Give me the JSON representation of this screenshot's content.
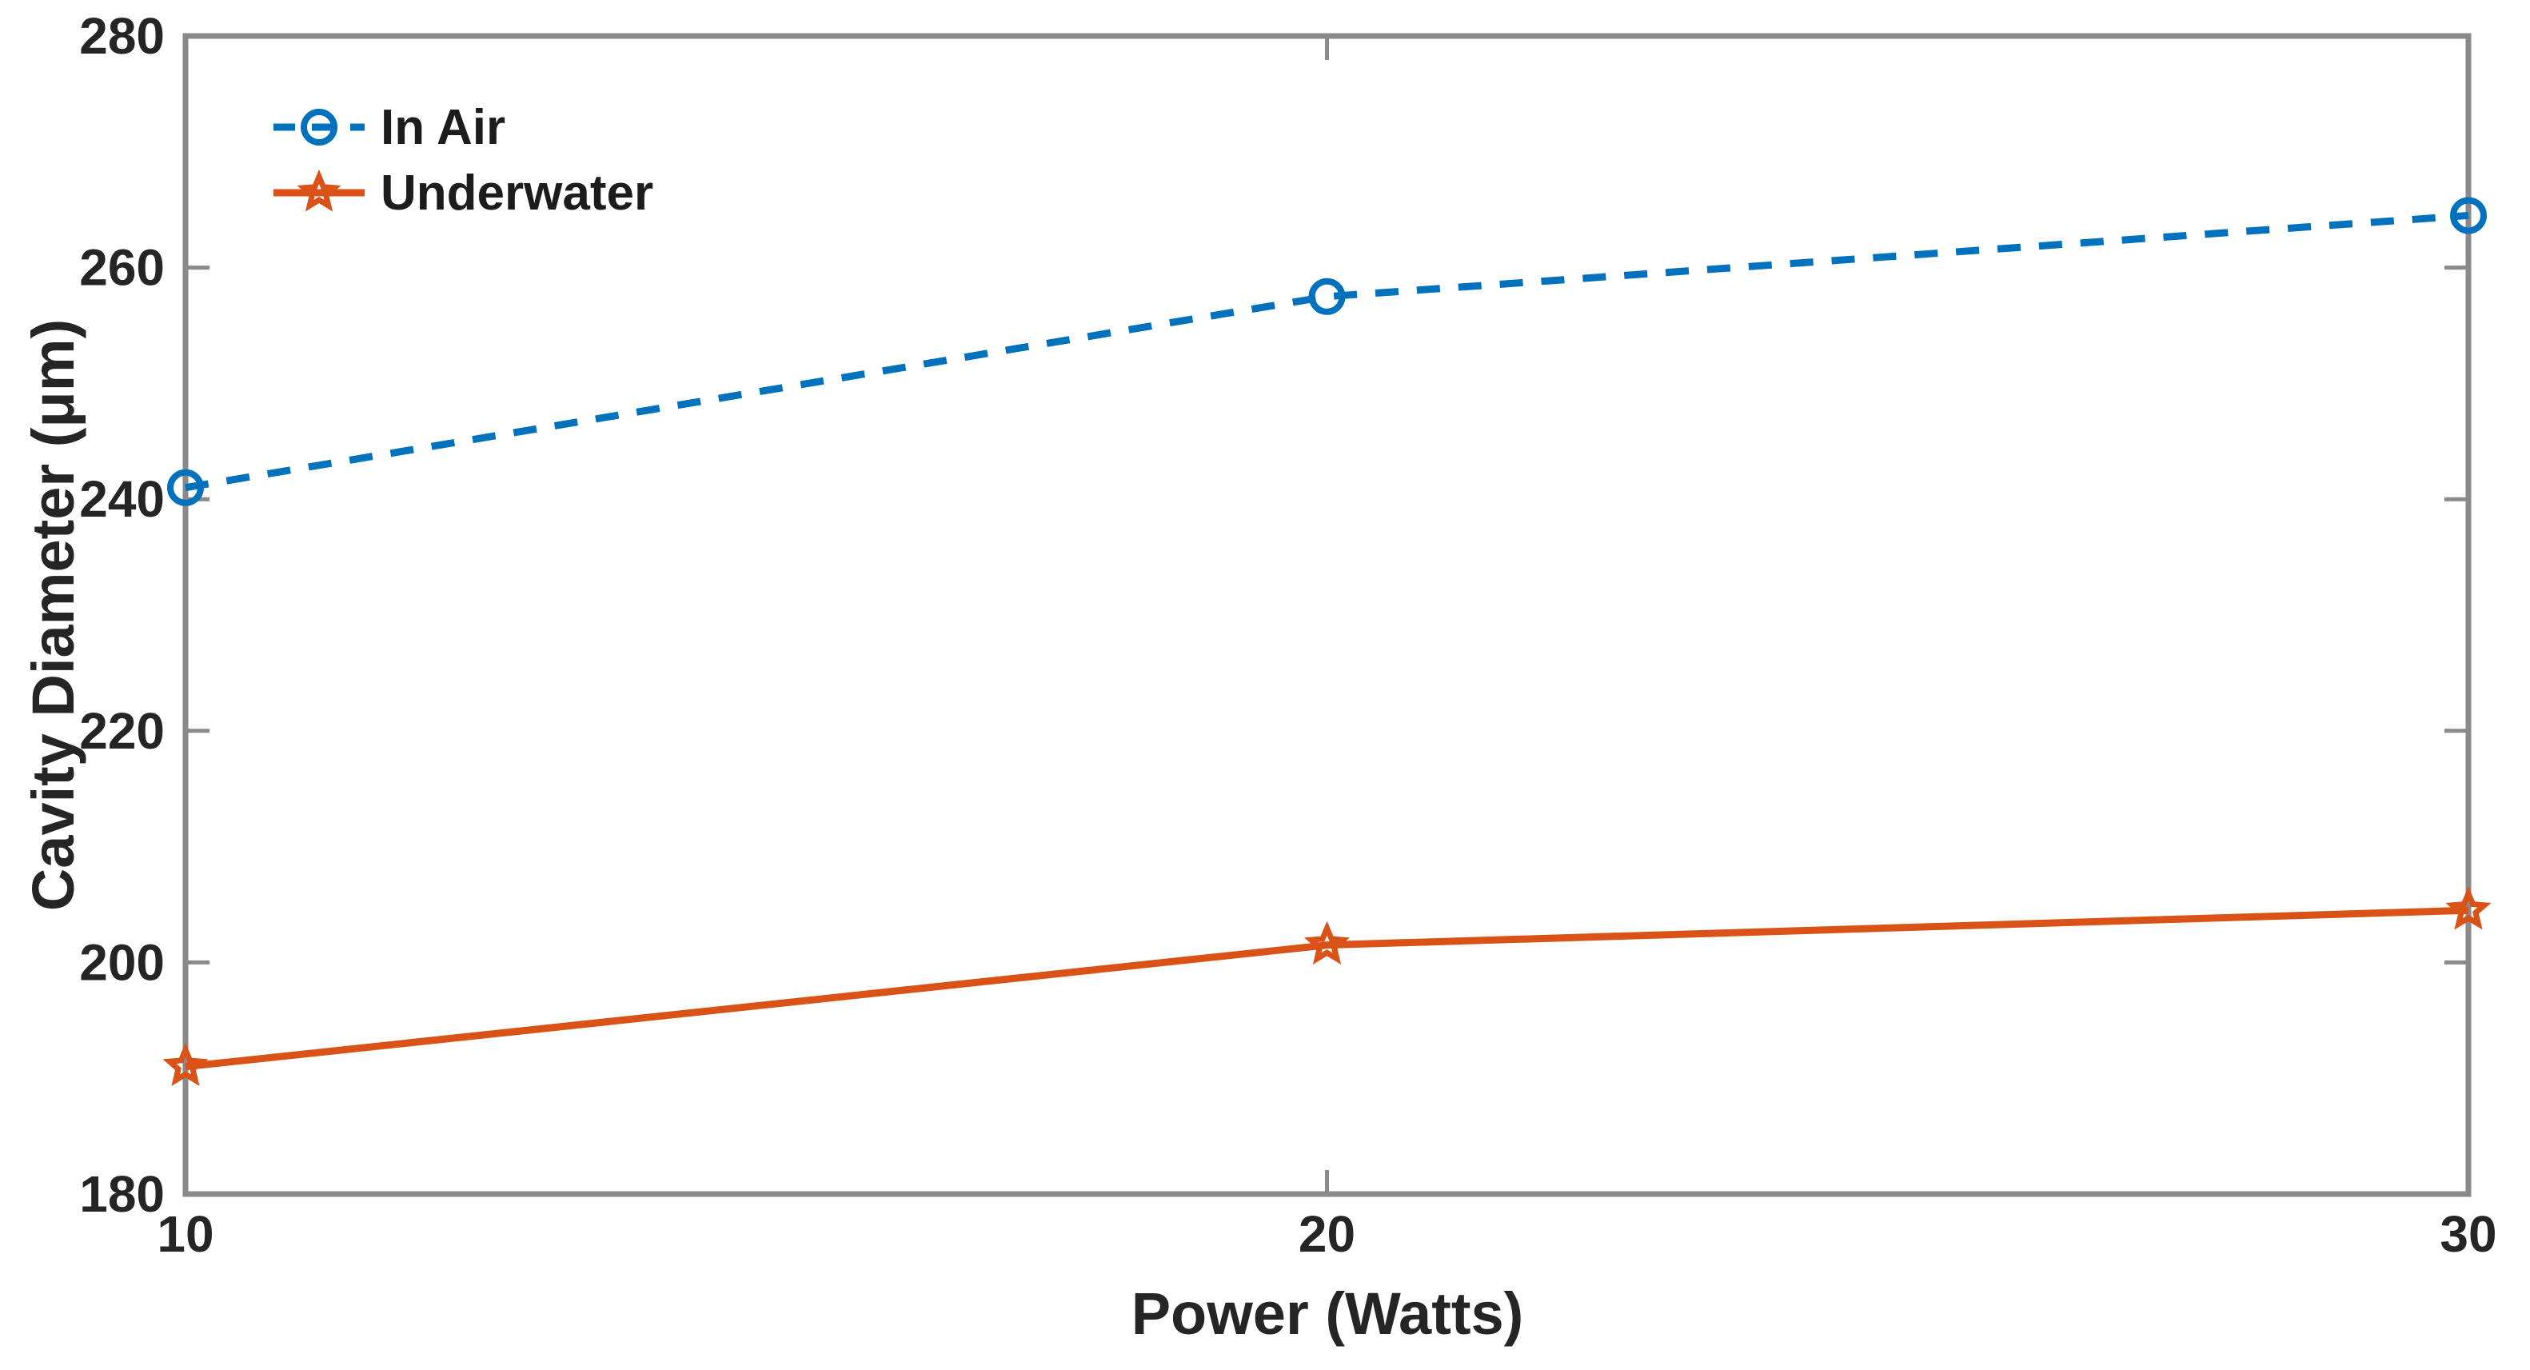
{
  "chart_data": {
    "type": "line",
    "title": "",
    "xlabel": "Power (Watts)",
    "ylabel": "Cavity Diameter (μm)",
    "x": [
      10,
      20,
      30
    ],
    "xticks": [
      10,
      20,
      30
    ],
    "yticks": [
      180,
      200,
      220,
      240,
      260,
      280
    ],
    "xlim": [
      10,
      30
    ],
    "ylim": [
      180,
      280
    ],
    "grid": false,
    "box": true,
    "tick_direction": "in",
    "legend_position": "top-left-inside",
    "series": [
      {
        "name": "In Air",
        "values": [
          241,
          257.5,
          264.5
        ],
        "color": "#0072BD",
        "line_style": "dashed",
        "marker": "circle"
      },
      {
        "name": "Underwater",
        "values": [
          191,
          201.5,
          204.5
        ],
        "color": "#D95319",
        "line_style": "solid",
        "marker": "star"
      }
    ],
    "axis_color": "#8a8a8a",
    "text_color": "#252525"
  }
}
